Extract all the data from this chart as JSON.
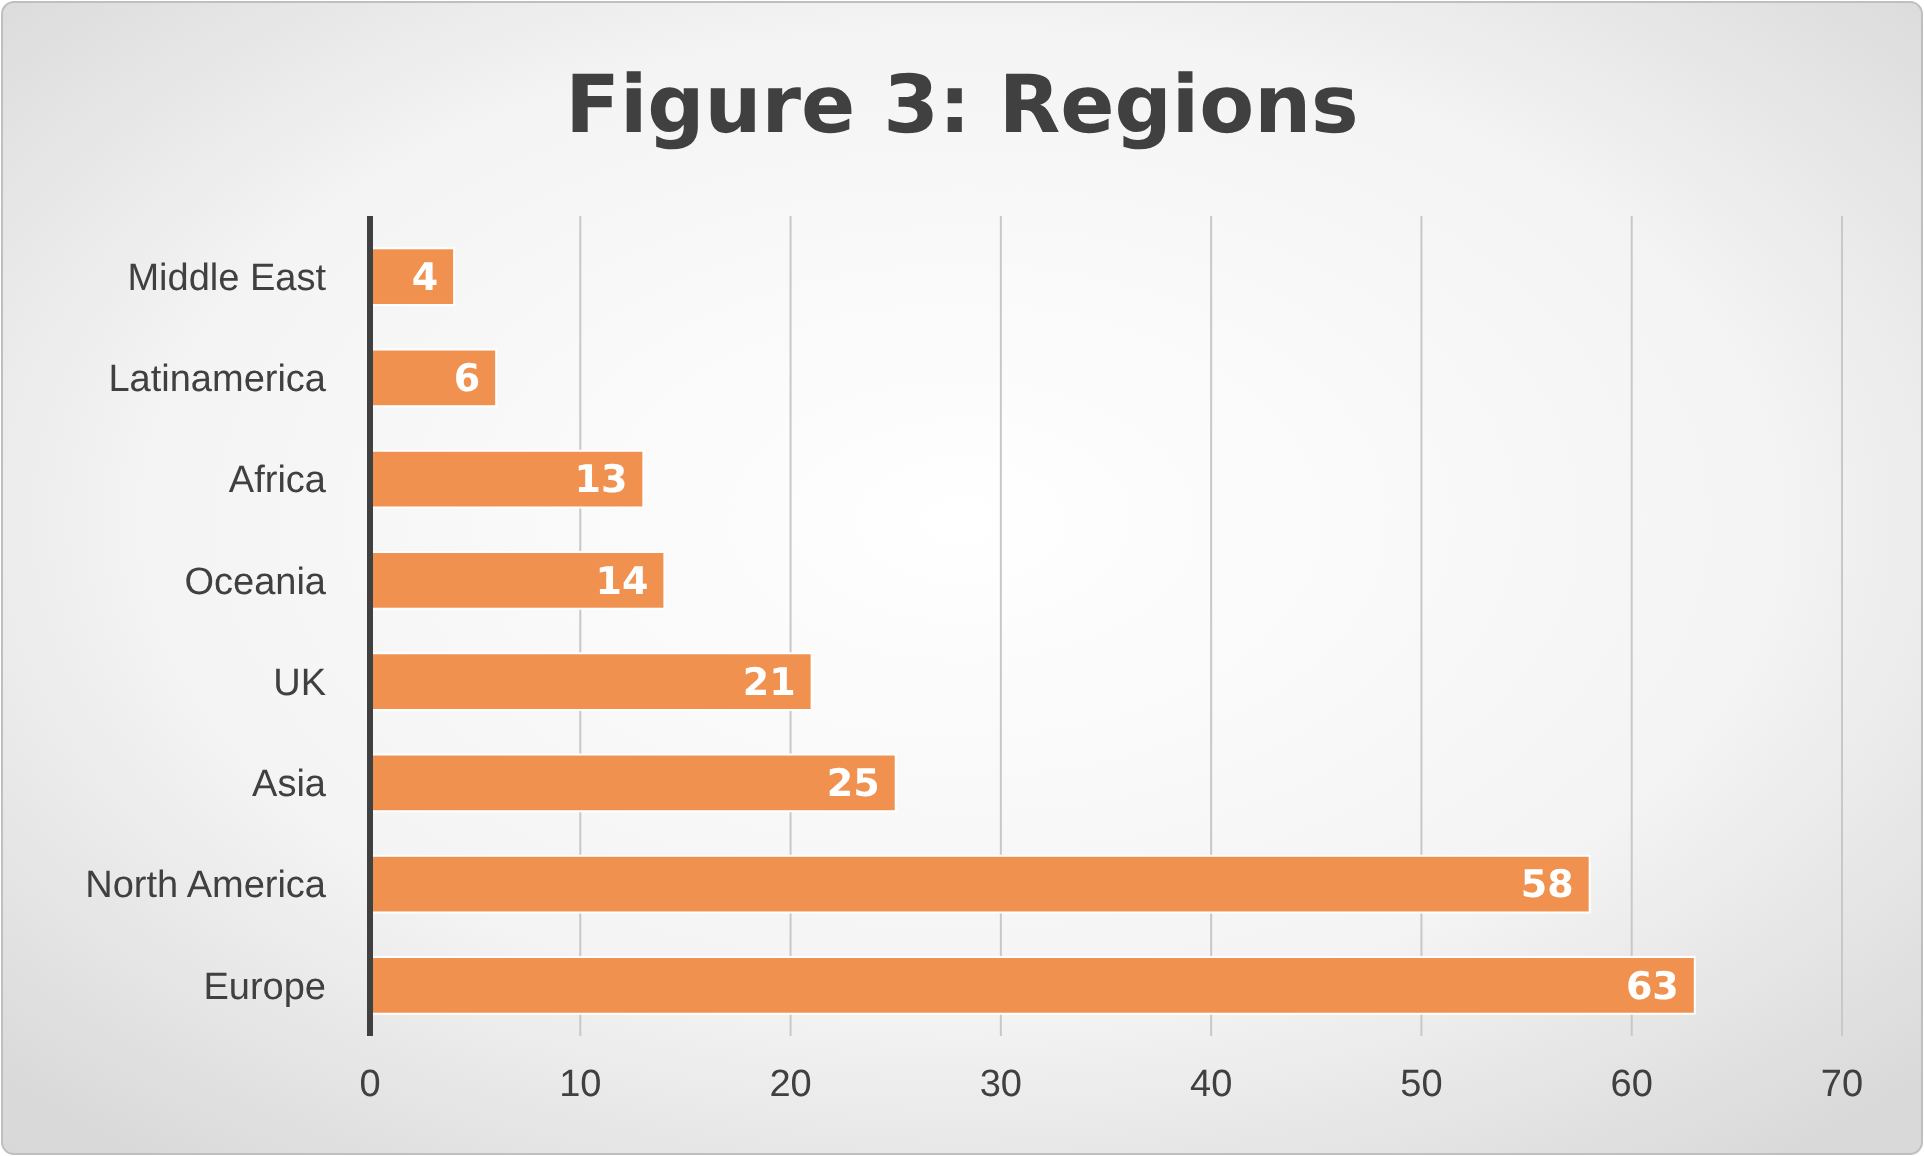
{
  "chart_data": {
    "type": "bar",
    "title": "Figure 3: Regions",
    "orientation": "horizontal",
    "categories": [
      "Middle East",
      "Latinamerica",
      "Africa",
      "Oceania",
      "UK",
      "Asia",
      "North America",
      "Europe"
    ],
    "values": [
      4,
      6,
      13,
      14,
      21,
      25,
      58,
      63
    ],
    "color": "#f0914f",
    "xlim": [
      0,
      70
    ],
    "xticks": [
      0,
      10,
      20,
      30,
      40,
      50,
      60,
      70
    ],
    "grid": "x",
    "data_labels": true
  }
}
